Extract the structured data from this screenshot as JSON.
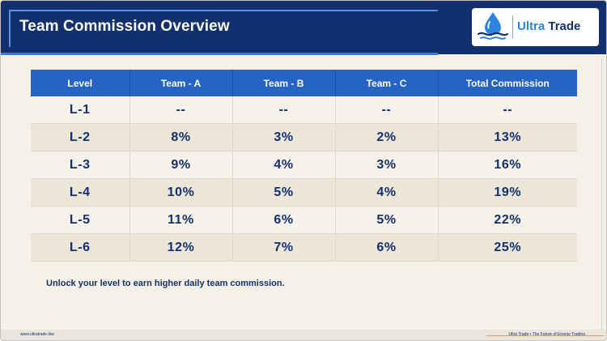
{
  "header": {
    "title": "Team Commission Overview",
    "logo_name_part1": "Ultra",
    "logo_name_part2": "Trade"
  },
  "table": {
    "columns": [
      "Level",
      "Team - A",
      "Team - B",
      "Team - C",
      "Total Commission"
    ],
    "rows": [
      [
        "L-1",
        "--",
        "--",
        "--",
        "--"
      ],
      [
        "L-2",
        "8%",
        "3%",
        "2%",
        "13%"
      ],
      [
        "L-3",
        "9%",
        "4%",
        "3%",
        "16%"
      ],
      [
        "L-4",
        "10%",
        "5%",
        "4%",
        "19%"
      ],
      [
        "L-5",
        "11%",
        "6%",
        "5%",
        "22%"
      ],
      [
        "L-6",
        "12%",
        "7%",
        "6%",
        "25%"
      ]
    ]
  },
  "note": "Unlock your level to earn higher daily team commission.",
  "footer": {
    "left": "www.ultratrade.live",
    "right": "Ultra Trade • The Future of Energy Trading"
  },
  "colors": {
    "header_bg": "#13306e",
    "table_header_bg": "#2563c4",
    "accent": "#2f83e0"
  },
  "icons": {
    "logo": "water-drop-wave-icon"
  }
}
